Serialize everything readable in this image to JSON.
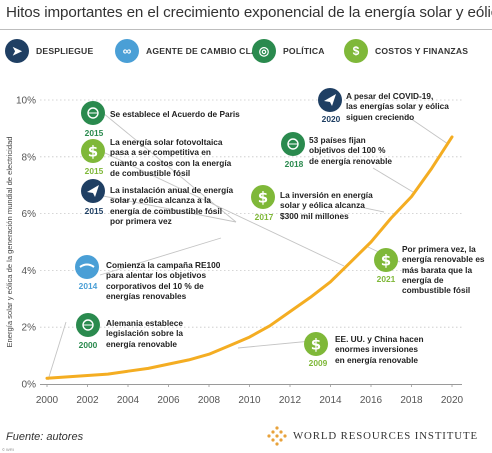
{
  "title": "Hitos importantes en el crecimiento exponencial de la energía solar y eólica",
  "legend": [
    {
      "label": "DESPLIEGUE",
      "icon": "paper-plane-icon",
      "color": "#1f3f63"
    },
    {
      "label": "AGENTE DE CAMBIO CLAVE",
      "icon": "handshake-icon",
      "color": "#4a9fd6"
    },
    {
      "label": "POLÍTICA",
      "icon": "globe-laurel-icon",
      "color": "#2a8a4e"
    },
    {
      "label": "COSTOS Y FINANZAS",
      "icon": "dollar-icon",
      "color": "#7fb839"
    }
  ],
  "chart_data": {
    "type": "line",
    "ylabel": "Energía solar y eólica de la generación mundial de electricidad",
    "y_ticks": [
      "0%",
      "2%",
      "4%",
      "6%",
      "8%",
      "10%"
    ],
    "x_ticks": [
      "2000",
      "2002",
      "2004",
      "2006",
      "2008",
      "2010",
      "2012",
      "2014",
      "2016",
      "2018",
      "2020"
    ],
    "xlim": [
      2000,
      2020
    ],
    "ylim": [
      0,
      10
    ],
    "grid": "horizontal dotted",
    "series_color": "#f4ad22",
    "x": [
      2000,
      2001,
      2002,
      2003,
      2004,
      2005,
      2006,
      2007,
      2008,
      2009,
      2010,
      2011,
      2012,
      2013,
      2014,
      2015,
      2016,
      2017,
      2018,
      2019,
      2020
    ],
    "values": [
      0.2,
      0.25,
      0.3,
      0.35,
      0.45,
      0.55,
      0.7,
      0.85,
      1.05,
      1.35,
      1.65,
      2.05,
      2.55,
      3.05,
      3.6,
      4.3,
      5.0,
      5.85,
      6.6,
      7.6,
      8.7
    ]
  },
  "annotations": [
    {
      "year": "2015",
      "kind": "politica",
      "text": [
        "Se establece el Acuerdo de Paris"
      ]
    },
    {
      "year": "2015",
      "kind": "costos",
      "text": [
        "La energía solar fotovoltaica",
        "pasa a ser competitiva en",
        "cuanto a costos con la energía",
        "de combustible fósil"
      ]
    },
    {
      "year": "2015",
      "kind": "despliegue",
      "text": [
        "La instalación anual de energía",
        "solar y eólica alcanza a la",
        "energía de combustible fósil",
        "por primera vez"
      ]
    },
    {
      "year": "2014",
      "kind": "agente",
      "text": [
        "Comienza la campaña RE100",
        "para alentar los objetivos",
        "corporativos del 10 % de",
        "energías renovables"
      ]
    },
    {
      "year": "2000",
      "kind": "politica",
      "text": [
        "Alemania establece",
        "legislación sobre la",
        "energía renovable"
      ]
    },
    {
      "year": "2020",
      "kind": "despliegue",
      "text": [
        "A pesar del COVID-19,",
        "las energías solar y eólica",
        "siguen creciendo"
      ]
    },
    {
      "year": "2018",
      "kind": "politica",
      "text": [
        "53 países fijan",
        "objetivos del 100 %",
        "de energía renovable"
      ]
    },
    {
      "year": "2017",
      "kind": "costos",
      "text": [
        "La inversión en energía",
        "solar y eólica alcanza",
        "$300 mil millones"
      ]
    },
    {
      "year": "2021",
      "kind": "costos",
      "text": [
        "Por primera vez, la",
        "energía renovable es",
        "más barata que la",
        "energía de",
        "combustible fósil"
      ]
    },
    {
      "year": "2009",
      "kind": "costos",
      "text": [
        "EE. UU. y China hacen",
        "enormes inversiones",
        "en energía renovable"
      ]
    }
  ],
  "source": {
    "label": "Fuente:",
    "value": "autores"
  },
  "brand": "WORLD RESOURCES INSTITUTE",
  "copyright": "© WRI"
}
